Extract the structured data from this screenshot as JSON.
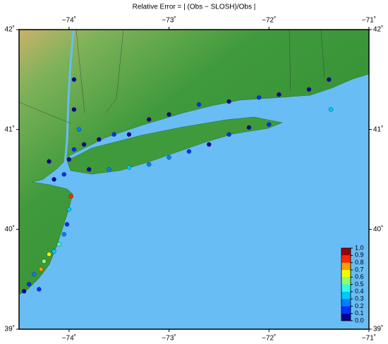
{
  "map": {
    "title": "Relative Error = | (Obs − SLOSH)/Obs |",
    "xlim": [
      -74.5,
      -71
    ],
    "ylim": [
      39,
      42
    ],
    "xticks": [
      {
        "value": -74,
        "label": "−74˚"
      },
      {
        "value": -73,
        "label": "−73˚"
      },
      {
        "value": -72,
        "label": "−72˚"
      },
      {
        "value": -71,
        "label": "−71˚"
      }
    ],
    "yticks": [
      {
        "value": 39,
        "label": "39˚"
      },
      {
        "value": 40,
        "label": "40˚"
      },
      {
        "value": 41,
        "label": "41˚"
      },
      {
        "value": 42,
        "label": "42˚"
      }
    ],
    "colorbar": {
      "lim": [
        0,
        1
      ],
      "ticks": [
        {
          "value": 0,
          "label": "0.0"
        },
        0.1,
        0.2,
        0.3,
        0.4,
        0.5,
        0.6,
        0.7,
        0.8,
        0.9,
        {
          "value": 1,
          "label": "1.0"
        }
      ],
      "colors": [
        "#00008f",
        "#0030ff",
        "#0080ff",
        "#00c8ff",
        "#30ffe0",
        "#90ff70",
        "#f0ff00",
        "#ff9c00",
        "#ff2800",
        "#9a0000"
      ]
    },
    "stations": [
      {
        "lon": -74.05,
        "lat": 40.55,
        "value": 0.1
      },
      {
        "lon": -74.15,
        "lat": 40.5,
        "value": 0.05
      },
      {
        "lon": -73.98,
        "lat": 40.33,
        "value": 0.85
      },
      {
        "lon": -74.0,
        "lat": 40.2,
        "value": 0.3
      },
      {
        "lon": -74.02,
        "lat": 40.05,
        "value": 0.1
      },
      {
        "lon": -74.05,
        "lat": 39.95,
        "value": 0.2
      },
      {
        "lon": -74.1,
        "lat": 39.85,
        "value": 0.4
      },
      {
        "lon": -74.15,
        "lat": 39.78,
        "value": 0.3
      },
      {
        "lon": -74.2,
        "lat": 39.75,
        "value": 0.6
      },
      {
        "lon": -74.25,
        "lat": 39.68,
        "value": 0.5
      },
      {
        "lon": -74.28,
        "lat": 39.6,
        "value": 0.7
      },
      {
        "lon": -74.35,
        "lat": 39.55,
        "value": 0.2
      },
      {
        "lon": -74.4,
        "lat": 39.45,
        "value": 0.1
      },
      {
        "lon": -74.45,
        "lat": 39.38,
        "value": 0.05
      },
      {
        "lon": -74.3,
        "lat": 39.4,
        "value": 0.15
      },
      {
        "lon": -74.2,
        "lat": 40.68,
        "value": 0.05
      },
      {
        "lon": -74.0,
        "lat": 40.7,
        "value": 0.08
      },
      {
        "lon": -73.95,
        "lat": 40.8,
        "value": 0.1
      },
      {
        "lon": -73.85,
        "lat": 40.85,
        "value": 0.05
      },
      {
        "lon": -73.7,
        "lat": 40.9,
        "value": 0.05
      },
      {
        "lon": -73.55,
        "lat": 40.95,
        "value": 0.1
      },
      {
        "lon": -73.4,
        "lat": 40.95,
        "value": 0.05
      },
      {
        "lon": -73.2,
        "lat": 41.1,
        "value": 0.05
      },
      {
        "lon": -73.0,
        "lat": 41.15,
        "value": 0.05
      },
      {
        "lon": -72.7,
        "lat": 41.25,
        "value": 0.1
      },
      {
        "lon": -72.4,
        "lat": 41.28,
        "value": 0.05
      },
      {
        "lon": -72.1,
        "lat": 41.32,
        "value": 0.1
      },
      {
        "lon": -71.9,
        "lat": 41.35,
        "value": 0.05
      },
      {
        "lon": -71.6,
        "lat": 41.4,
        "value": 0.08
      },
      {
        "lon": -71.4,
        "lat": 41.5,
        "value": 0.05
      },
      {
        "lon": -71.38,
        "lat": 41.2,
        "value": 0.3
      },
      {
        "lon": -73.8,
        "lat": 40.6,
        "value": 0.05
      },
      {
        "lon": -73.6,
        "lat": 40.6,
        "value": 0.25
      },
      {
        "lon": -73.4,
        "lat": 40.62,
        "value": 0.3
      },
      {
        "lon": -73.2,
        "lat": 40.65,
        "value": 0.25
      },
      {
        "lon": -73.0,
        "lat": 40.72,
        "value": 0.2
      },
      {
        "lon": -72.8,
        "lat": 40.78,
        "value": 0.1
      },
      {
        "lon": -72.6,
        "lat": 40.85,
        "value": 0.05
      },
      {
        "lon": -72.4,
        "lat": 40.95,
        "value": 0.1
      },
      {
        "lon": -72.2,
        "lat": 41.02,
        "value": 0.05
      },
      {
        "lon": -72.0,
        "lat": 41.05,
        "value": 0.1
      },
      {
        "lon": -73.95,
        "lat": 41.2,
        "value": 0.05
      },
      {
        "lon": -73.95,
        "lat": 41.5,
        "value": 0.05
      },
      {
        "lon": -73.9,
        "lat": 41.0,
        "value": 0.2
      }
    ]
  }
}
